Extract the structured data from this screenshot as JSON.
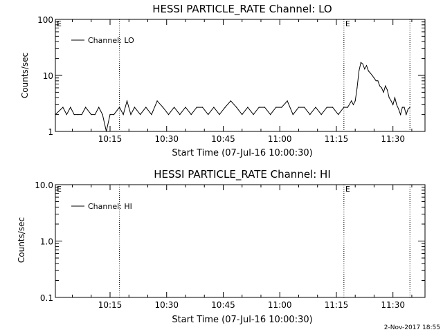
{
  "footer_timestamp": "2-Nov-2017 18:55",
  "chart_data": [
    {
      "type": "line",
      "title": "HESSI PARTICLE_RATE Channel: LO",
      "xlabel": "Start Time (07-Jul-16 10:00:30)",
      "ylabel": "Counts/sec",
      "yscale": "log",
      "xlim": [
        "10:00:30",
        "11:38:30"
      ],
      "ylim": [
        1,
        100
      ],
      "x_ticks": [
        "10:15",
        "10:30",
        "10:45",
        "11:00",
        "11:15",
        "11:30"
      ],
      "y_ticks": [
        "1",
        "10",
        "100"
      ],
      "legend": "top-left",
      "grid": false,
      "event_markers": [
        {
          "time": "10:00:30",
          "label": "E"
        },
        {
          "time": "10:17:30",
          "label": ""
        },
        {
          "time": "11:17:00",
          "label": "E"
        },
        {
          "time": "11:34:30",
          "label": ""
        }
      ],
      "series": [
        {
          "name": "Channel: LO",
          "x": [
            "10:00:30",
            "10:02:30",
            "10:03:30",
            "10:04:30",
            "10:05:30",
            "10:06:30",
            "10:07:30",
            "10:08:30",
            "10:10:00",
            "10:11:00",
            "10:12:00",
            "10:13:00",
            "10:14:00",
            "10:15:00",
            "10:16:00",
            "10:17:30",
            "10:18:30",
            "10:19:30",
            "10:20:30",
            "10:21:30",
            "10:23:00",
            "10:24:30",
            "10:26:00",
            "10:27:30",
            "10:29:00",
            "10:30:30",
            "10:32:00",
            "10:33:30",
            "10:35:00",
            "10:36:30",
            "10:38:00",
            "10:39:30",
            "10:41:00",
            "10:42:30",
            "10:44:00",
            "10:45:30",
            "10:47:00",
            "10:48:30",
            "10:50:00",
            "10:51:30",
            "10:53:00",
            "10:54:30",
            "10:56:00",
            "10:57:30",
            "10:59:00",
            "11:00:30",
            "11:02:00",
            "11:03:30",
            "11:05:00",
            "11:06:30",
            "11:08:00",
            "11:09:30",
            "11:11:00",
            "11:12:30",
            "11:14:00",
            "11:15:30",
            "11:17:00",
            "11:18:00",
            "11:19:00",
            "11:19:30",
            "11:20:00",
            "11:20:30",
            "11:21:00",
            "11:21:30",
            "11:22:00",
            "11:22:30",
            "11:23:00",
            "11:23:30",
            "11:24:00",
            "11:24:30",
            "11:25:00",
            "11:25:30",
            "11:26:00",
            "11:26:30",
            "11:27:00",
            "11:27:30",
            "11:28:00",
            "11:28:30",
            "11:29:00",
            "11:29:30",
            "11:30:00",
            "11:30:30",
            "11:31:00",
            "11:31:30",
            "11:32:00",
            "11:32:30",
            "11:33:00",
            "11:33:30",
            "11:34:00",
            "11:34:30"
          ],
          "values": [
            2,
            2.7,
            2,
            2.7,
            2,
            2,
            2,
            2.7,
            2,
            2,
            2.7,
            2,
            1,
            2,
            2,
            2.7,
            2,
            3.5,
            2,
            2.7,
            2,
            2.7,
            2,
            3.5,
            2.7,
            2,
            2.7,
            2,
            2.7,
            2,
            2.7,
            2.7,
            2,
            2.7,
            2,
            2.7,
            3.5,
            2.7,
            2,
            2.7,
            2,
            2.7,
            2.7,
            2,
            2.7,
            2.7,
            3.5,
            2,
            2.7,
            2.7,
            2,
            2.7,
            2,
            2.7,
            2.7,
            2,
            2.7,
            2.7,
            3.5,
            3,
            3.5,
            6,
            12,
            17,
            16,
            13,
            15,
            12,
            11,
            10,
            9,
            8,
            8,
            6.5,
            6,
            5,
            6.5,
            5.5,
            4,
            3.5,
            3,
            4,
            3,
            2.5,
            2,
            2.7,
            2.7,
            2,
            2.5,
            2.7
          ]
        }
      ]
    },
    {
      "type": "line",
      "title": "HESSI PARTICLE_RATE Channel: HI",
      "xlabel": "Start Time (07-Jul-16 10:00:30)",
      "ylabel": "Counts/sec",
      "yscale": "log",
      "xlim": [
        "10:00:30",
        "11:38:30"
      ],
      "ylim": [
        0.1,
        10.0
      ],
      "x_ticks": [
        "10:15",
        "10:30",
        "10:45",
        "11:00",
        "11:15",
        "11:30"
      ],
      "y_ticks": [
        "0.1",
        "1.0",
        "10.0"
      ],
      "legend": "top-left",
      "grid": false,
      "event_markers": [
        {
          "time": "10:00:30",
          "label": "E"
        },
        {
          "time": "10:17:30",
          "label": ""
        },
        {
          "time": "11:17:00",
          "label": "E"
        },
        {
          "time": "11:34:30",
          "label": ""
        }
      ],
      "series": [
        {
          "name": "Channel: HI",
          "x": [],
          "values": []
        }
      ]
    }
  ]
}
